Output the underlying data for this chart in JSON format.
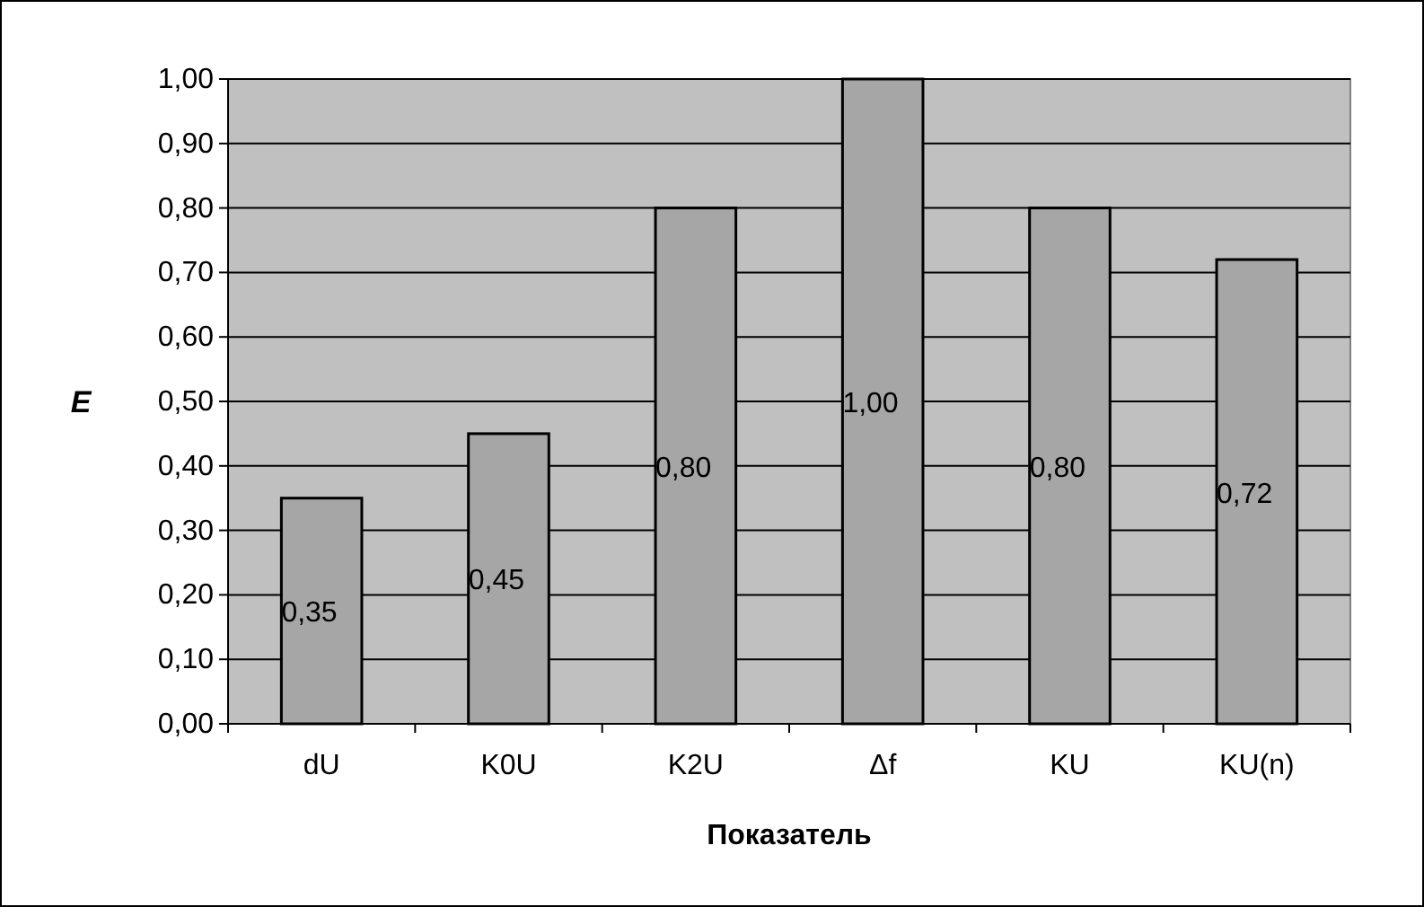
{
  "chart_data": {
    "type": "bar",
    "xlabel": "Показатель",
    "ylabel": "E",
    "categories": [
      "dU",
      "K0U",
      "K2U",
      "Δf",
      "KU",
      "KU(n)"
    ],
    "values": [
      0.35,
      0.45,
      0.8,
      1.0,
      0.8,
      0.72
    ],
    "value_labels": [
      "0,35",
      "0,45",
      "0,80",
      "1,00",
      "0,80",
      "0,72"
    ],
    "color": "#a6a6a6",
    "ylim": [
      0,
      1
    ],
    "yticks": [
      {
        "value": 0,
        "label": "0,00"
      },
      {
        "value": 0.1,
        "label": "0,10"
      },
      {
        "value": 0.2,
        "label": "0,20"
      },
      {
        "value": 0.3,
        "label": "0,30"
      },
      {
        "value": 0.4,
        "label": "0,40"
      },
      {
        "value": 0.5,
        "label": "0,50"
      },
      {
        "value": 0.6,
        "label": "0,60"
      },
      {
        "value": 0.7,
        "label": "0,70"
      },
      {
        "value": 0.8,
        "label": "0,80"
      },
      {
        "value": 0.9,
        "label": "0,90"
      },
      {
        "value": 1,
        "label": "1,00"
      }
    ],
    "grid": "y"
  }
}
